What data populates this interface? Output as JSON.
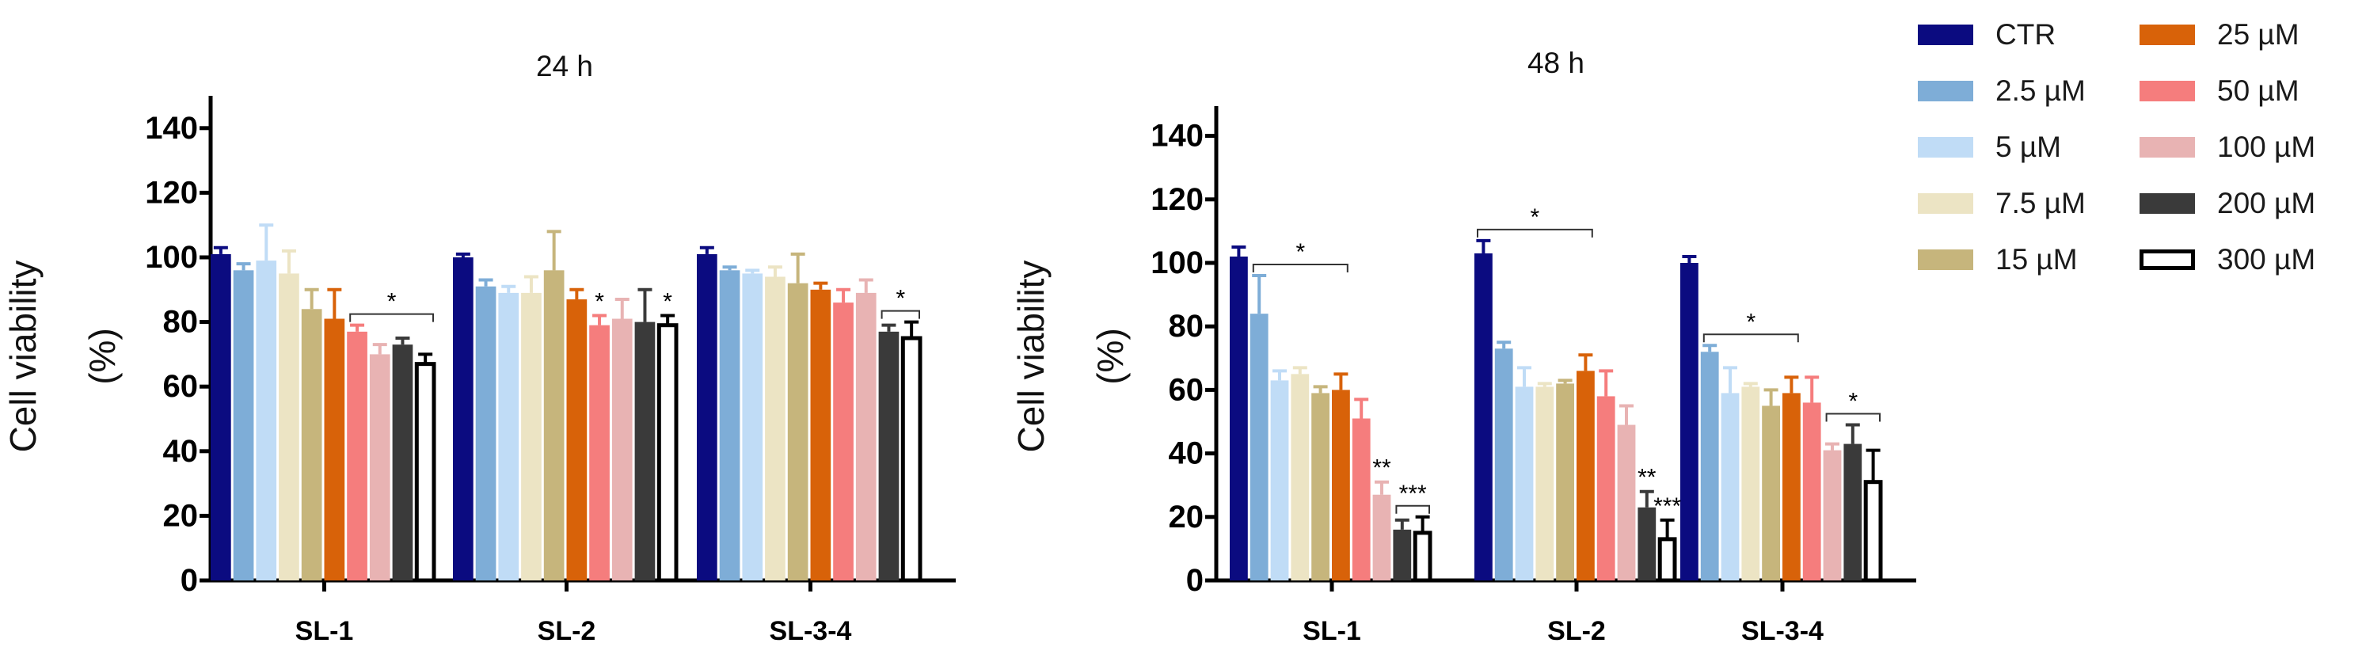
{
  "chart_data": [
    {
      "type": "bar",
      "title": "24 h",
      "xlabel": "",
      "ylabel": "Cell viability (%)",
      "ylabel_lines": [
        "Cell viability",
        "(%)"
      ],
      "ylim": [
        0,
        150
      ],
      "yticks": [
        0,
        20,
        40,
        60,
        80,
        100,
        120,
        140
      ],
      "categories": [
        "SL-1",
        "SL-2",
        "SL-3-4"
      ],
      "series": [
        {
          "name": "CTR",
          "values": [
            101,
            100,
            101
          ],
          "errors": [
            2,
            1,
            2
          ]
        },
        {
          "name": "2.5 µM",
          "values": [
            96,
            91,
            96
          ],
          "errors": [
            2,
            2,
            1
          ]
        },
        {
          "name": "5 µM",
          "values": [
            99,
            89,
            95
          ],
          "errors": [
            11,
            2,
            1
          ]
        },
        {
          "name": "7.5 µM",
          "values": [
            95,
            89,
            94
          ],
          "errors": [
            7,
            5,
            3
          ]
        },
        {
          "name": "15 µM",
          "values": [
            84,
            96,
            92
          ],
          "errors": [
            6,
            12,
            9
          ]
        },
        {
          "name": "25 µM",
          "values": [
            81,
            87,
            90
          ],
          "errors": [
            9,
            3,
            2
          ]
        },
        {
          "name": "50 µM",
          "values": [
            77,
            79,
            86
          ],
          "errors": [
            2,
            3,
            4
          ]
        },
        {
          "name": "100 µM",
          "values": [
            70,
            81,
            89
          ],
          "errors": [
            3,
            6,
            4
          ]
        },
        {
          "name": "200 µM",
          "values": [
            73,
            80,
            77
          ],
          "errors": [
            2,
            10,
            2
          ]
        },
        {
          "name": "300 µM",
          "values": [
            67,
            79,
            75
          ],
          "errors": [
            3,
            3,
            5
          ]
        }
      ],
      "annotations": [
        {
          "text": "*",
          "type": "bracket",
          "category": 0,
          "from": 6,
          "to": 9
        },
        {
          "text": "*",
          "type": "label",
          "category": 1,
          "series": 6
        },
        {
          "text": "*",
          "type": "label",
          "category": 1,
          "series": 9
        },
        {
          "text": "*",
          "type": "bracket",
          "category": 2,
          "from": 8,
          "to": 9
        }
      ]
    },
    {
      "type": "bar",
      "title": "48 h",
      "xlabel": "",
      "ylabel": "Cell viability (%)",
      "ylabel_lines": [
        "Cell viability",
        "(%)"
      ],
      "ylim": [
        0,
        150
      ],
      "yticks": [
        0,
        20,
        40,
        60,
        80,
        100,
        120,
        140
      ],
      "categories": [
        "SL-1",
        "SL-2",
        "SL-3-4"
      ],
      "series": [
        {
          "name": "CTR",
          "values": [
            102,
            103,
            100
          ],
          "errors": [
            3,
            4,
            2
          ]
        },
        {
          "name": "2.5 µM",
          "values": [
            84,
            73,
            72
          ],
          "errors": [
            12,
            2,
            2
          ]
        },
        {
          "name": "5 µM",
          "values": [
            63,
            61,
            59
          ],
          "errors": [
            3,
            6,
            8
          ]
        },
        {
          "name": "7.5 µM",
          "values": [
            65,
            61,
            61
          ],
          "errors": [
            2,
            1,
            1
          ]
        },
        {
          "name": "15 µM",
          "values": [
            59,
            62,
            55
          ],
          "errors": [
            2,
            1,
            5
          ]
        },
        {
          "name": "25 µM",
          "values": [
            60,
            66,
            59
          ],
          "errors": [
            5,
            5,
            5
          ]
        },
        {
          "name": "50 µM",
          "values": [
            51,
            58,
            56
          ],
          "errors": [
            6,
            8,
            8
          ]
        },
        {
          "name": "100 µM",
          "values": [
            27,
            49,
            41
          ],
          "errors": [
            4,
            6,
            2
          ]
        },
        {
          "name": "200 µM",
          "values": [
            16,
            23,
            43
          ],
          "errors": [
            3,
            5,
            6
          ]
        },
        {
          "name": "300 µM",
          "values": [
            15,
            13,
            31
          ],
          "errors": [
            5,
            6,
            10
          ]
        }
      ],
      "annotations": [
        {
          "text": "*",
          "type": "bracket",
          "category": 0,
          "from": 1,
          "to": 5
        },
        {
          "text": "**",
          "type": "label",
          "category": 0,
          "series": 7
        },
        {
          "text": "***",
          "type": "bracket",
          "category": 0,
          "from": 8,
          "to": 9
        },
        {
          "text": "*",
          "type": "bracket",
          "category": 1,
          "from": 0,
          "to": 5
        },
        {
          "text": "**",
          "type": "label",
          "category": 1,
          "series": 8
        },
        {
          "text": "***",
          "type": "label",
          "category": 1,
          "series": 9
        },
        {
          "text": "*",
          "type": "bracket",
          "category": 2,
          "from": 1,
          "to": 5
        },
        {
          "text": "*",
          "type": "bracket",
          "category": 2,
          "from": 7,
          "to": 9
        }
      ]
    }
  ],
  "legend": {
    "entries": [
      {
        "label": "CTR",
        "fill": "#0b0b80",
        "stroke": "#0b0b80"
      },
      {
        "label": "2.5 µM",
        "fill": "#7eadd7",
        "stroke": "#7eadd7"
      },
      {
        "label": "5 µM",
        "fill": "#c0dcf6",
        "stroke": "#c0dcf6"
      },
      {
        "label": "7.5 µM",
        "fill": "#ece4c4",
        "stroke": "#ece4c4"
      },
      {
        "label": "15 µM",
        "fill": "#c6b57c",
        "stroke": "#c6b57c"
      },
      {
        "label": "25 µM",
        "fill": "#d86209",
        "stroke": "#d86209"
      },
      {
        "label": "50 µM",
        "fill": "#f57d7d",
        "stroke": "#f57d7d"
      },
      {
        "label": "100 µM",
        "fill": "#e8b3b3",
        "stroke": "#e8b3b3"
      },
      {
        "label": "200 µM",
        "fill": "#3a3a3a",
        "stroke": "#3a3a3a"
      },
      {
        "label": "300 µM",
        "fill": "#ffffff",
        "stroke": "#000000"
      }
    ]
  }
}
